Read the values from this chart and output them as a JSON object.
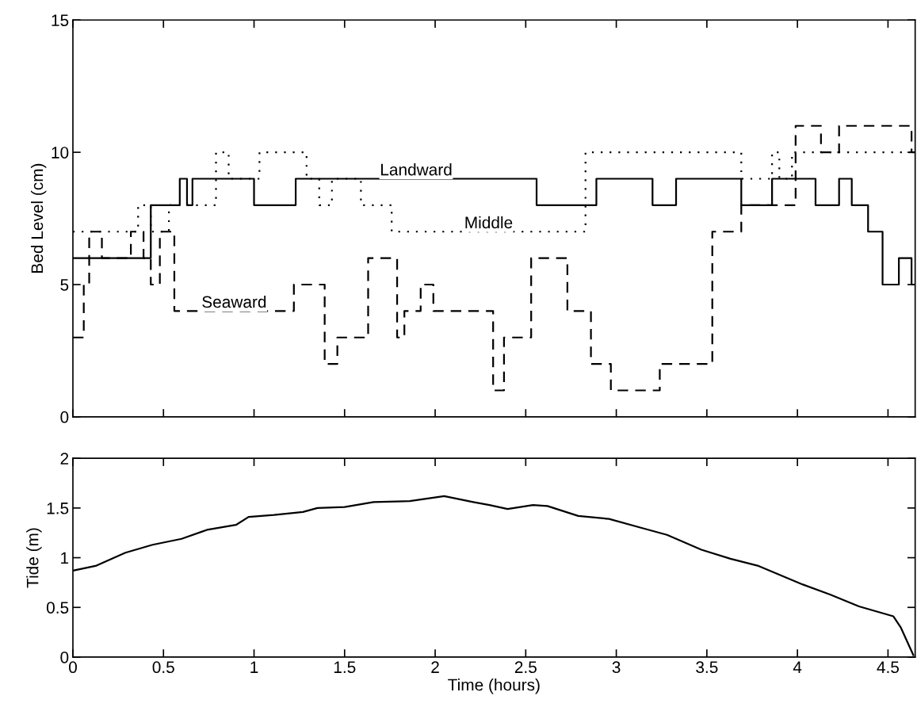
{
  "chart_data": [
    {
      "type": "step",
      "ylabel": "Bed Level (cm)",
      "xlim": [
        0,
        4.65
      ],
      "ylim": [
        0,
        15
      ],
      "xticks": [
        0,
        0.5,
        1,
        1.5,
        2,
        2.5,
        3,
        3.5,
        4,
        4.5
      ],
      "yticks": [
        0,
        5,
        10,
        15
      ],
      "tick_labels": "y",
      "grid": false,
      "legend": false,
      "series": [
        {
          "name": "Landward",
          "color": "#000000",
          "line_style": "solid",
          "x": [
            0,
            0.43,
            0.59,
            0.63,
            0.66,
            1.0,
            1.23,
            2.56,
            2.89,
            3.2,
            3.33,
            3.69,
            3.86,
            4.1,
            4.23,
            4.3,
            4.39,
            4.47,
            4.56,
            4.63,
            4.65
          ],
          "values": [
            6,
            8,
            9,
            8,
            9,
            8,
            9,
            8,
            9,
            8,
            9,
            8,
            9,
            8,
            9,
            8,
            7,
            5,
            6,
            5,
            5
          ]
        },
        {
          "name": "Middle",
          "color": "#000000",
          "line_style": "dotted",
          "x": [
            0,
            0.36,
            0.43,
            0.53,
            0.79,
            0.86,
            1.03,
            1.29,
            1.36,
            1.43,
            1.59,
            1.76,
            2.83,
            3.69,
            3.86,
            3.9,
            3.97,
            4.65
          ],
          "values": [
            7,
            8,
            7,
            8,
            10,
            9,
            10,
            9,
            8,
            9,
            8,
            7,
            10,
            9,
            10,
            9,
            10,
            10
          ]
        },
        {
          "name": "Seaward",
          "color": "#000000",
          "line_style": "dashed",
          "x": [
            0,
            0.06,
            0.09,
            0.16,
            0.32,
            0.39,
            0.43,
            0.48,
            0.56,
            1.22,
            1.39,
            1.46,
            1.63,
            1.79,
            1.83,
            1.92,
            1.99,
            2.32,
            2.38,
            2.53,
            2.73,
            2.86,
            2.97,
            3.24,
            3.53,
            3.69,
            3.99,
            4.13,
            4.23,
            4.63,
            4.65
          ],
          "values": [
            3,
            5,
            7,
            6,
            7,
            6,
            5,
            7,
            4,
            5,
            2,
            3,
            6,
            3,
            4,
            5,
            4,
            1,
            3,
            6,
            4,
            2,
            1,
            2,
            7,
            8,
            11,
            10,
            11,
            10,
            10
          ]
        }
      ]
    },
    {
      "type": "line",
      "xlabel": "Time (hours)",
      "ylabel": "Tide (m)",
      "xlim": [
        0,
        4.65
      ],
      "ylim": [
        0,
        2
      ],
      "xticks": [
        0,
        0.5,
        1,
        1.5,
        2,
        2.5,
        3,
        3.5,
        4,
        4.5
      ],
      "yticks": [
        0,
        0.5,
        1,
        1.5,
        2
      ],
      "grid": false,
      "legend": false,
      "series": [
        {
          "color": "#000000",
          "line_style": "solid",
          "x": [
            0,
            0.13,
            0.29,
            0.44,
            0.6,
            0.74,
            0.9,
            0.97,
            1.11,
            1.27,
            1.35,
            1.5,
            1.66,
            1.86,
            2.05,
            2.21,
            2.3,
            2.4,
            2.54,
            2.62,
            2.79,
            2.96,
            3.14,
            3.28,
            3.47,
            3.63,
            3.78,
            4.03,
            4.18,
            4.34,
            4.53,
            4.57,
            4.64
          ],
          "values": [
            0.87,
            0.92,
            1.05,
            1.13,
            1.19,
            1.28,
            1.33,
            1.41,
            1.43,
            1.46,
            1.5,
            1.51,
            1.56,
            1.57,
            1.62,
            1.56,
            1.53,
            1.49,
            1.53,
            1.52,
            1.42,
            1.39,
            1.3,
            1.23,
            1.08,
            0.99,
            0.92,
            0.73,
            0.63,
            0.51,
            0.41,
            0.3,
            0.02
          ]
        }
      ]
    }
  ]
}
